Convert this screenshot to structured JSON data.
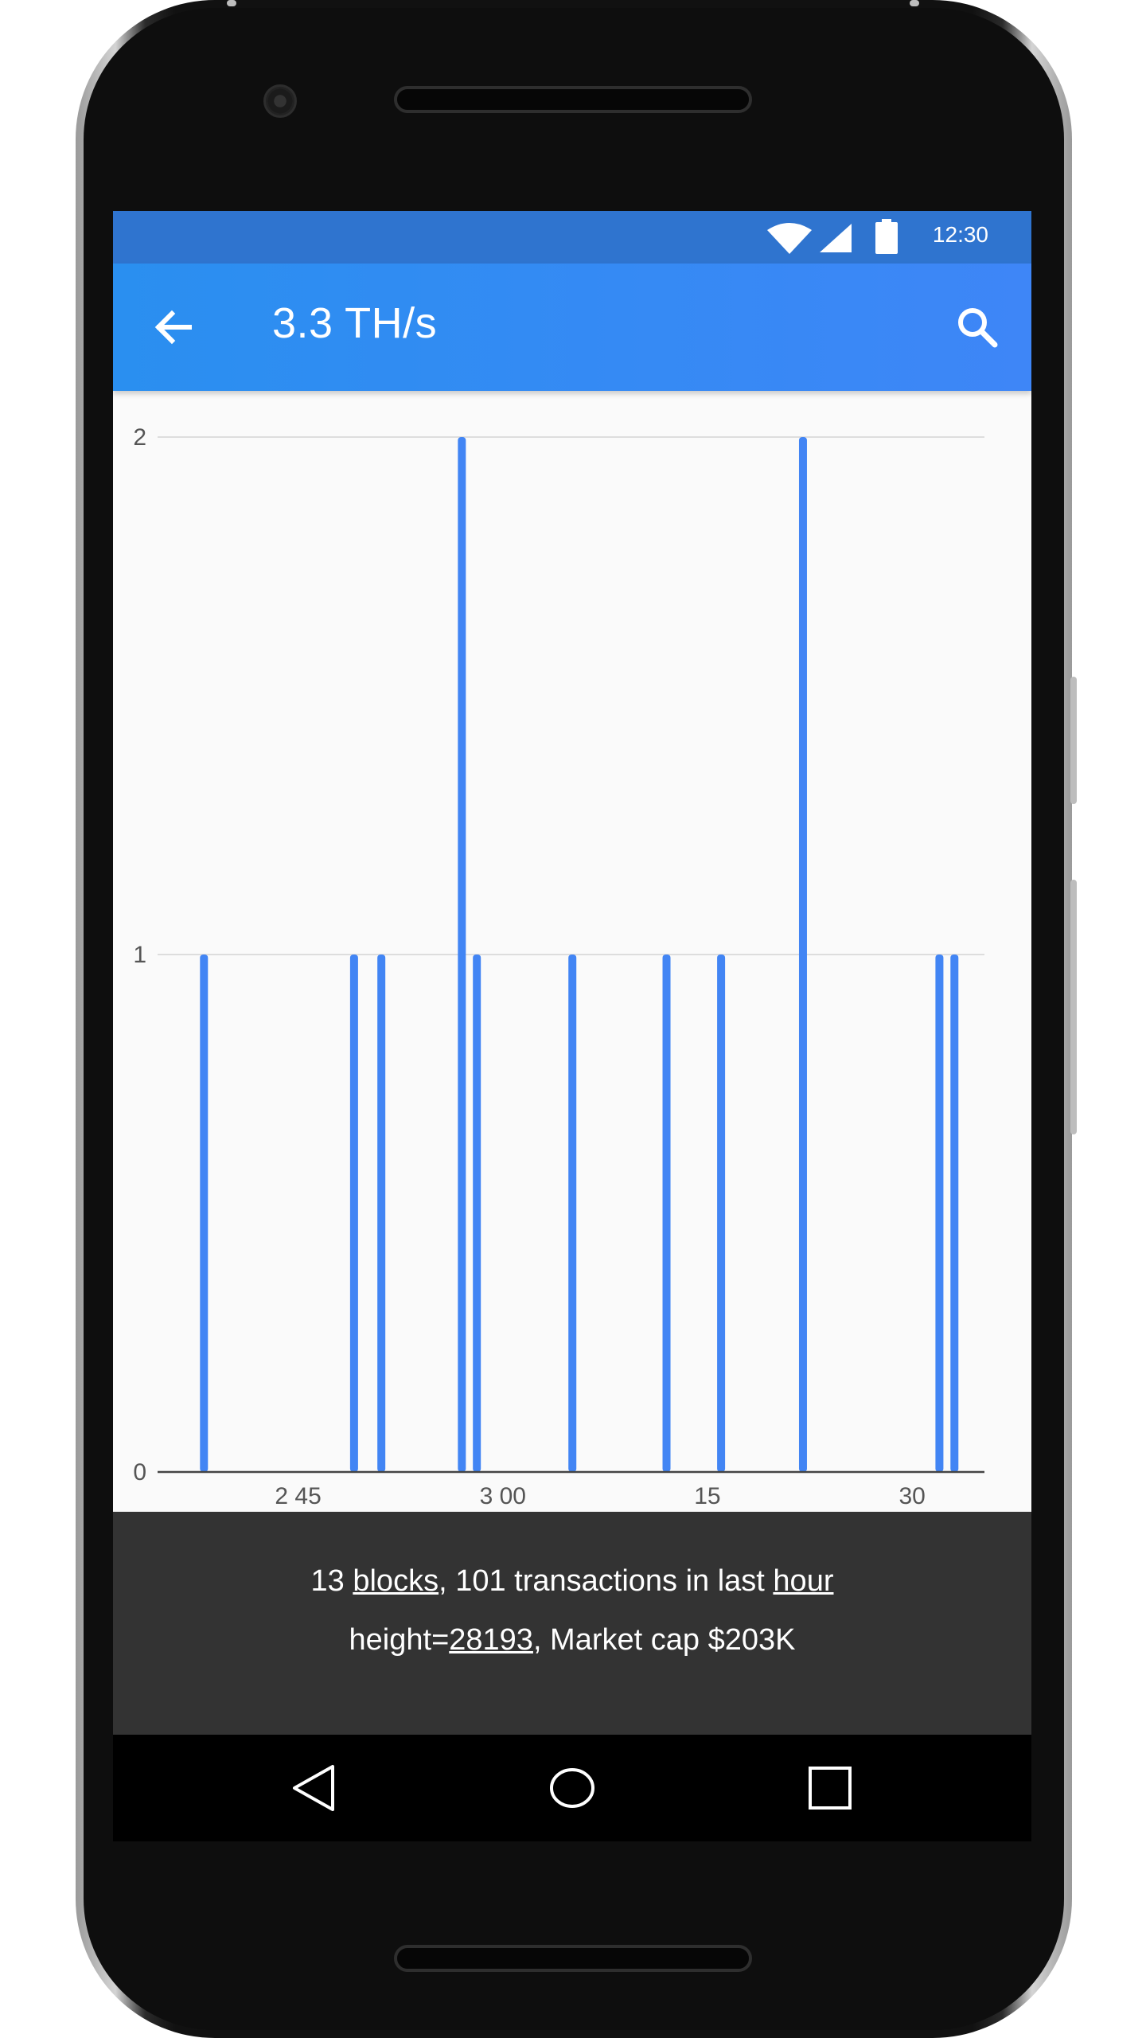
{
  "status_bar": {
    "time": "12:30"
  },
  "app_bar": {
    "title": "3.3 TH/s"
  },
  "footer": {
    "line1": {
      "count": "13",
      "blocks_link": "blocks",
      "middle": ", 101 transactions in last ",
      "hour_link": "hour"
    },
    "line2": {
      "prefix": "height=",
      "height_link": "28193",
      "suffix": ", Market cap $203K"
    }
  },
  "colors": {
    "app_bar": "#3e86f7",
    "status_bar": "#2f74cf",
    "bar": "#4285f4",
    "footer_bg": "#333333"
  },
  "icons": {
    "back": "arrow-back-icon",
    "search": "search-icon",
    "nav_back": "triangle-back-icon",
    "nav_home": "circle-home-icon",
    "nav_recents": "square-recents-icon"
  },
  "chart_data": {
    "type": "bar",
    "x_unit": "minutes",
    "x_ticks": [
      {
        "value": 0,
        "label": "2 45"
      },
      {
        "value": 15,
        "label": "3 00"
      },
      {
        "value": 30,
        "label": "15"
      },
      {
        "value": 45,
        "label": "30"
      }
    ],
    "y_ticks": [
      0,
      1,
      2
    ],
    "ylim": [
      0,
      2
    ],
    "xlim": [
      -10.3,
      50.3
    ],
    "grid": true,
    "bars": [
      {
        "x": -6.9,
        "value": 1
      },
      {
        "x": 4.1,
        "value": 1
      },
      {
        "x": 6.1,
        "value": 1
      },
      {
        "x": 12.0,
        "value": 2
      },
      {
        "x": 13.1,
        "value": 1
      },
      {
        "x": 20.1,
        "value": 1
      },
      {
        "x": 27.0,
        "value": 1
      },
      {
        "x": 31.0,
        "value": 1
      },
      {
        "x": 37.0,
        "value": 2
      },
      {
        "x": 47.0,
        "value": 1
      },
      {
        "x": 48.1,
        "value": 1
      }
    ]
  }
}
